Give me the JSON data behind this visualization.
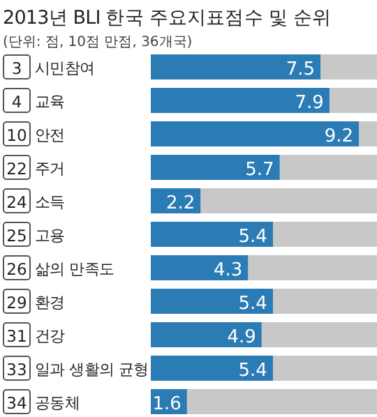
{
  "chart_data": {
    "type": "bar",
    "orientation": "horizontal",
    "title": "2013년 BLI 한국 주요지표점수 및 순위",
    "subtitle": "(단위: 점, 10점 만점, 36개국)",
    "categories": [
      "시민참여",
      "교육",
      "안전",
      "주거",
      "소득",
      "고용",
      "삶의 만족도",
      "환경",
      "건강",
      "일과 생활의 균형",
      "공동체"
    ],
    "values": [
      7.5,
      7.9,
      9.2,
      5.7,
      2.2,
      5.4,
      4.3,
      5.4,
      4.9,
      5.4,
      1.6
    ],
    "color": "#2b7bb4",
    "xlim": [
      0,
      10
    ],
    "data_labels": true,
    "tick_labels": "y",
    "annotations": [
      "3",
      "4",
      "10",
      "22",
      "24",
      "25",
      "26",
      "29",
      "31",
      "33",
      "34"
    ]
  }
}
